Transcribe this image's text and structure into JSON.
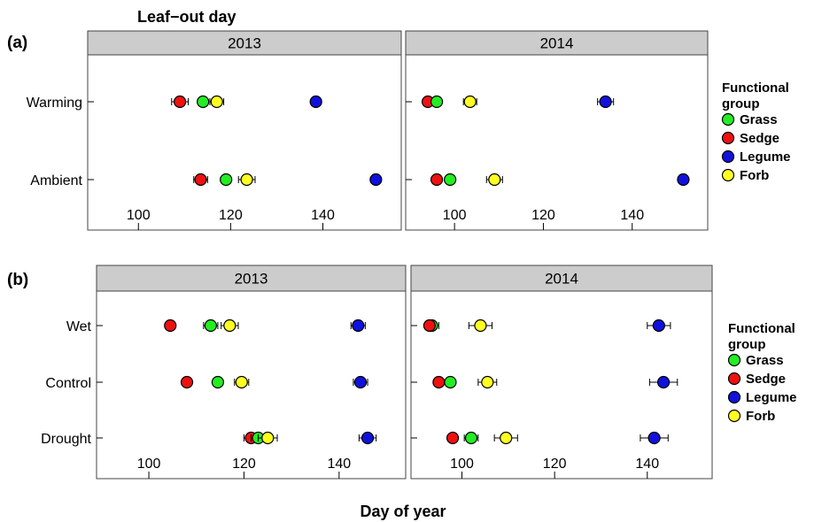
{
  "figure": {
    "title": "Leaf−out day",
    "xlabel": "Day of year"
  },
  "colors": {
    "Grass": "#22ee22",
    "Sedge": "#ee1111",
    "Legume": "#1111dd",
    "Forb": "#ffff22",
    "strip": "#cccccc"
  },
  "chart_data": [
    {
      "type": "scatter",
      "panel_label": "(a)",
      "xlabel": "Day of year",
      "xlim": [
        89,
        157
      ],
      "xticks": [
        100,
        120,
        140
      ],
      "legend": {
        "title": "Functional group",
        "position": "right",
        "items": [
          "Grass",
          "Sedge",
          "Legume",
          "Forb"
        ]
      },
      "rows": [
        "Warming",
        "Ambient"
      ],
      "facets": [
        {
          "strip": "2013",
          "points": [
            {
              "row": "Warming",
              "group": "Sedge",
              "x": 109.0,
              "err": 1.8
            },
            {
              "row": "Warming",
              "group": "Grass",
              "x": 114.0,
              "err": 1.0
            },
            {
              "row": "Warming",
              "group": "Forb",
              "x": 117.0,
              "err": 1.5
            },
            {
              "row": "Warming",
              "group": "Legume",
              "x": 138.5,
              "err": 1.0
            },
            {
              "row": "Ambient",
              "group": "Sedge",
              "x": 113.5,
              "err": 1.5
            },
            {
              "row": "Ambient",
              "group": "Grass",
              "x": 119.0,
              "err": 1.0
            },
            {
              "row": "Ambient",
              "group": "Forb",
              "x": 123.5,
              "err": 1.8
            },
            {
              "row": "Ambient",
              "group": "Legume",
              "x": 151.5,
              "err": 0.8
            }
          ]
        },
        {
          "strip": "2014",
          "points": [
            {
              "row": "Warming",
              "group": "Sedge",
              "x": 94.0,
              "err": 1.0
            },
            {
              "row": "Warming",
              "group": "Grass",
              "x": 96.0,
              "err": 1.0
            },
            {
              "row": "Warming",
              "group": "Forb",
              "x": 103.5,
              "err": 1.5
            },
            {
              "row": "Warming",
              "group": "Legume",
              "x": 134.0,
              "err": 1.8
            },
            {
              "row": "Ambient",
              "group": "Sedge",
              "x": 96.0,
              "err": 1.0
            },
            {
              "row": "Ambient",
              "group": "Grass",
              "x": 99.0,
              "err": 1.0
            },
            {
              "row": "Ambient",
              "group": "Forb",
              "x": 109.0,
              "err": 1.8
            },
            {
              "row": "Ambient",
              "group": "Legume",
              "x": 151.5,
              "err": 0.8
            }
          ]
        }
      ]
    },
    {
      "type": "scatter",
      "panel_label": "(b)",
      "xlabel": "Day of year",
      "xlim": [
        89,
        154
      ],
      "xticks": [
        100,
        120,
        140
      ],
      "legend": {
        "title": "Functional group",
        "position": "right",
        "items": [
          "Grass",
          "Sedge",
          "Legume",
          "Forb"
        ]
      },
      "rows": [
        "Wet",
        "Control",
        "Drought"
      ],
      "facets": [
        {
          "strip": "2013",
          "points": [
            {
              "row": "Wet",
              "group": "Sedge",
              "x": 104.5,
              "err": 1.0
            },
            {
              "row": "Wet",
              "group": "Grass",
              "x": 113.0,
              "err": 1.5
            },
            {
              "row": "Wet",
              "group": "Forb",
              "x": 117.0,
              "err": 1.8
            },
            {
              "row": "Wet",
              "group": "Legume",
              "x": 144.0,
              "err": 1.5
            },
            {
              "row": "Control",
              "group": "Sedge",
              "x": 108.0,
              "err": 1.0
            },
            {
              "row": "Control",
              "group": "Grass",
              "x": 114.5,
              "err": 1.0
            },
            {
              "row": "Control",
              "group": "Forb",
              "x": 119.5,
              "err": 1.5
            },
            {
              "row": "Control",
              "group": "Legume",
              "x": 144.5,
              "err": 1.5
            },
            {
              "row": "Drought",
              "group": "Sedge",
              "x": 121.5,
              "err": 1.5
            },
            {
              "row": "Drought",
              "group": "Grass",
              "x": 123.0,
              "err": 1.5
            },
            {
              "row": "Drought",
              "group": "Forb",
              "x": 125.0,
              "err": 2.0
            },
            {
              "row": "Drought",
              "group": "Legume",
              "x": 146.0,
              "err": 1.8
            }
          ]
        },
        {
          "strip": "2014",
          "points": [
            {
              "row": "Wet",
              "group": "Grass",
              "x": 93.5,
              "err": 1.5
            },
            {
              "row": "Wet",
              "group": "Sedge",
              "x": 93.0,
              "err": 1.0
            },
            {
              "row": "Wet",
              "group": "Forb",
              "x": 104.0,
              "err": 2.5
            },
            {
              "row": "Wet",
              "group": "Legume",
              "x": 142.5,
              "err": 2.5
            },
            {
              "row": "Control",
              "group": "Sedge",
              "x": 95.0,
              "err": 1.0
            },
            {
              "row": "Control",
              "group": "Grass",
              "x": 97.5,
              "err": 1.0
            },
            {
              "row": "Control",
              "group": "Forb",
              "x": 105.5,
              "err": 2.0
            },
            {
              "row": "Control",
              "group": "Legume",
              "x": 143.5,
              "err": 3.0
            },
            {
              "row": "Drought",
              "group": "Sedge",
              "x": 98.0,
              "err": 1.0
            },
            {
              "row": "Drought",
              "group": "Grass",
              "x": 102.0,
              "err": 1.5
            },
            {
              "row": "Drought",
              "group": "Forb",
              "x": 109.5,
              "err": 2.5
            },
            {
              "row": "Drought",
              "group": "Legume",
              "x": 141.5,
              "err": 3.0
            }
          ]
        }
      ]
    }
  ]
}
